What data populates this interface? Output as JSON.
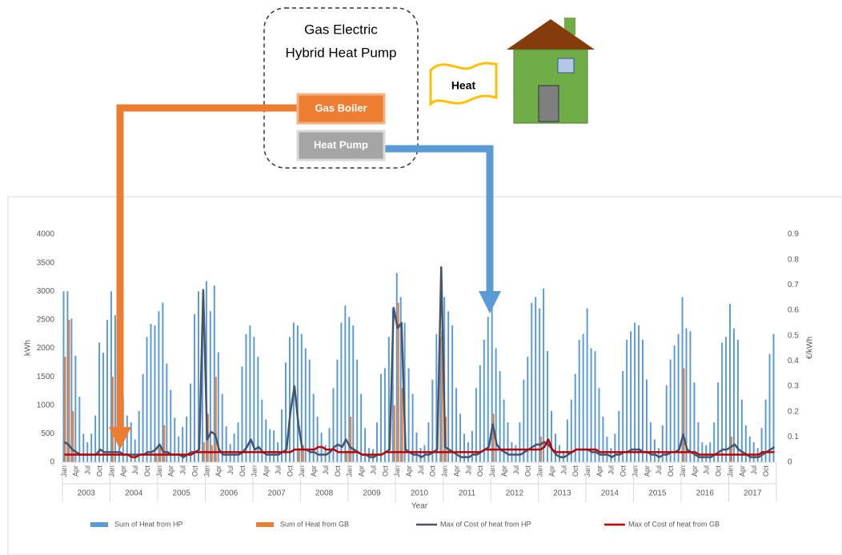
{
  "diagram": {
    "system_title_1": "Gas Electric",
    "system_title_2": "Hybrid Heat Pump",
    "gas_boiler": "Gas Boiler",
    "heat_pump": "Heat Pump",
    "heat": "Heat"
  },
  "chart_data": {
    "type": "bar",
    "y_label": "kWh",
    "y2_label": "€/kWh",
    "x_label": "Year",
    "years": [
      "2003",
      "2004",
      "2005",
      "2006",
      "2007",
      "2008",
      "2009",
      "2010",
      "2011",
      "2012",
      "2013",
      "2014",
      "2015",
      "2016",
      "2017"
    ],
    "categories": [
      "Jan",
      null,
      null,
      "Apr",
      null,
      null,
      "Jul",
      null,
      null,
      "Oct",
      null,
      null,
      "Jan",
      null,
      null,
      "Apr",
      null,
      null,
      "Jul",
      null,
      null,
      "Oct",
      null,
      null,
      "Jan",
      null,
      null,
      "Apr",
      null,
      null,
      "Jul",
      null,
      null,
      "Oct",
      null,
      null,
      "Jan",
      null,
      null,
      "Apr",
      null,
      null,
      "Jul",
      null,
      null,
      "Oct",
      null,
      null,
      "Jan",
      null,
      null,
      "Apr",
      null,
      null,
      "Jul",
      null,
      null,
      "Oct",
      null,
      null,
      "Jan",
      null,
      null,
      "Apr",
      null,
      null,
      "Jul",
      null,
      null,
      "Oct",
      null,
      null,
      "Jan",
      null,
      null,
      "Apr",
      null,
      null,
      "Jul",
      null,
      null,
      "Oct",
      null,
      null,
      "Jan",
      null,
      null,
      "Apr",
      null,
      null,
      "Jul",
      null,
      null,
      "Oct",
      null,
      null,
      "Jan",
      null,
      null,
      "Apr",
      null,
      null,
      "Jul",
      null,
      null,
      "Oct",
      null,
      null,
      "Jan",
      null,
      null,
      "Apr",
      null,
      null,
      "Jul",
      null,
      null,
      "Oct",
      null,
      null,
      "Jan",
      null,
      null,
      "Apr",
      null,
      null,
      "Jul",
      null,
      null,
      "Oct",
      null,
      null,
      "Jan",
      null,
      null,
      "Apr",
      null,
      null,
      "Jul",
      null,
      null,
      "Oct",
      null,
      null,
      "Jan",
      null,
      null,
      "Apr",
      null,
      null,
      "Jul",
      null,
      null,
      "Oct",
      null,
      null,
      "Jan",
      null,
      null,
      "Apr",
      null,
      null,
      "Jul",
      null,
      null,
      "Oct",
      null,
      null,
      "Jan",
      null,
      null,
      "Apr",
      null,
      null,
      "Jul",
      null,
      null,
      "Oct",
      null,
      null
    ],
    "ylim": [
      0,
      4000
    ],
    "yticks": [
      0,
      500,
      1000,
      1500,
      2000,
      2500,
      3000,
      3500,
      4000
    ],
    "y2lim": [
      0,
      0.9
    ],
    "y2ticks": [
      0,
      0.1,
      0.2,
      0.3,
      0.4,
      0.5,
      0.6,
      0.7,
      0.8,
      0.9
    ],
    "grid": false,
    "series": [
      {
        "name": "Sum of Heat from HP",
        "type": "bar",
        "color": "#5b9bd5",
        "values": [
          3000,
          3000,
          2520,
          1870,
          1150,
          500,
          350,
          500,
          820,
          2100,
          1920,
          2500,
          3000,
          2580,
          1350,
          1150,
          820,
          700,
          400,
          900,
          1550,
          2200,
          2430,
          2400,
          2650,
          2800,
          1730,
          1270,
          780,
          450,
          620,
          800,
          1380,
          2600,
          3000,
          2600,
          3180,
          2650,
          3100,
          1930,
          1200,
          630,
          320,
          500,
          700,
          1680,
          2250,
          2400,
          2200,
          1850,
          1100,
          750,
          580,
          560,
          350,
          930,
          1750,
          2200,
          2450,
          2400,
          2250,
          2000,
          1800,
          1200,
          800,
          520,
          300,
          600,
          1300,
          1800,
          2450,
          2750,
          2550,
          2400,
          1800,
          1200,
          600,
          250,
          230,
          700,
          1550,
          1650,
          2200,
          2700,
          3320,
          2900,
          2450,
          1650,
          1200,
          520,
          250,
          300,
          700,
          1450,
          2250,
          2200,
          2900,
          2650,
          2400,
          1300,
          850,
          500,
          350,
          550,
          1300,
          1700,
          2150,
          2550,
          2750,
          2000,
          1600,
          1100,
          700,
          350,
          300,
          700,
          1450,
          1850,
          2800,
          2900,
          2700,
          3050,
          1950,
          900,
          500,
          300,
          200,
          750,
          1100,
          1550,
          2150,
          2250,
          2700,
          2000,
          1950,
          1300,
          800,
          450,
          250,
          500,
          900,
          1600,
          2150,
          2300,
          2450,
          2400,
          2150,
          1450,
          700,
          400,
          250,
          650,
          1350,
          1800,
          2050,
          2250,
          2900,
          2350,
          2300,
          1400,
          700,
          350,
          300,
          350,
          700,
          1400,
          2100,
          2200,
          2780,
          2350,
          2150,
          1100,
          650,
          450,
          350,
          250,
          600,
          1100,
          1900,
          2250
        ]
      },
      {
        "name": "Sum of Heat from GB",
        "type": "bar",
        "color": "#ed7d31",
        "values": [
          1850,
          2500,
          900,
          0,
          0,
          0,
          0,
          0,
          0,
          0,
          0,
          0,
          1500,
          0,
          0,
          0,
          0,
          0,
          0,
          0,
          0,
          0,
          0,
          150,
          250,
          650,
          0,
          0,
          0,
          0,
          0,
          0,
          0,
          0,
          0,
          350,
          850,
          300,
          1500,
          0,
          0,
          0,
          0,
          0,
          0,
          0,
          0,
          0,
          0,
          0,
          0,
          0,
          0,
          0,
          0,
          0,
          0,
          0,
          0,
          250,
          300,
          0,
          0,
          0,
          0,
          0,
          0,
          0,
          0,
          0,
          0,
          200,
          800,
          0,
          0,
          0,
          0,
          0,
          0,
          0,
          0,
          0,
          0,
          1000,
          2800,
          1300,
          0,
          0,
          0,
          0,
          0,
          0,
          0,
          0,
          0,
          2300,
          800,
          0,
          0,
          0,
          0,
          0,
          0,
          0,
          0,
          0,
          0,
          0,
          850,
          0,
          0,
          0,
          0,
          0,
          0,
          0,
          0,
          0,
          0,
          0,
          450,
          0,
          0,
          0,
          0,
          0,
          0,
          0,
          0,
          0,
          0,
          0,
          0,
          0,
          0,
          0,
          0,
          0,
          0,
          0,
          0,
          0,
          0,
          0,
          0,
          0,
          0,
          0,
          0,
          0,
          0,
          0,
          0,
          0,
          0,
          0,
          1650,
          0,
          0,
          0,
          0,
          0,
          0,
          0,
          0,
          0,
          0,
          0,
          450,
          0,
          0,
          0,
          0,
          0,
          0,
          0,
          0,
          0,
          0,
          0
        ]
      },
      {
        "name": "Max of Cost of heat from HP",
        "type": "line",
        "axis": "y2",
        "color": "#44546a",
        "values": [
          0.08,
          0.07,
          0.05,
          0.04,
          0.03,
          0.03,
          0.03,
          0.03,
          0.03,
          0.05,
          0.04,
          0.04,
          0.04,
          0.04,
          0.04,
          0.03,
          0.03,
          0.03,
          0.03,
          0.03,
          0.03,
          0.04,
          0.04,
          0.05,
          0.07,
          0.04,
          0.04,
          0.03,
          0.03,
          0.03,
          0.02,
          0.03,
          0.04,
          0.04,
          0.05,
          0.68,
          0.09,
          0.12,
          0.11,
          0.05,
          0.03,
          0.03,
          0.03,
          0.03,
          0.03,
          0.04,
          0.06,
          0.09,
          0.05,
          0.06,
          0.04,
          0.03,
          0.03,
          0.03,
          0.03,
          0.04,
          0.05,
          0.2,
          0.3,
          0.15,
          0.05,
          0.05,
          0.04,
          0.04,
          0.03,
          0.03,
          0.03,
          0.04,
          0.06,
          0.07,
          0.06,
          0.09,
          0.06,
          0.05,
          0.04,
          0.03,
          0.03,
          0.02,
          0.02,
          0.03,
          0.03,
          0.04,
          0.05,
          0.61,
          0.53,
          0.55,
          0.05,
          0.04,
          0.03,
          0.03,
          0.02,
          0.03,
          0.03,
          0.04,
          0.05,
          0.77,
          0.06,
          0.05,
          0.04,
          0.03,
          0.02,
          0.02,
          0.02,
          0.03,
          0.03,
          0.04,
          0.05,
          0.06,
          0.15,
          0.07,
          0.05,
          0.04,
          0.03,
          0.03,
          0.03,
          0.03,
          0.04,
          0.05,
          0.06,
          0.07,
          0.07,
          0.08,
          0.07,
          0.05,
          0.03,
          0.02,
          0.02,
          0.03,
          0.04,
          0.05,
          0.05,
          0.05,
          0.05,
          0.04,
          0.04,
          0.03,
          0.03,
          0.03,
          0.02,
          0.03,
          0.03,
          0.04,
          0.04,
          0.05,
          0.05,
          0.05,
          0.04,
          0.04,
          0.03,
          0.03,
          0.02,
          0.03,
          0.03,
          0.04,
          0.04,
          0.05,
          0.11,
          0.05,
          0.04,
          0.03,
          0.02,
          0.02,
          0.02,
          0.02,
          0.03,
          0.04,
          0.05,
          0.05,
          0.06,
          0.07,
          0.05,
          0.04,
          0.03,
          0.02,
          0.02,
          0.02,
          0.03,
          0.04,
          0.05,
          0.06
        ]
      },
      {
        "name": "Max of Cost of heat from GB",
        "type": "line",
        "axis": "y2",
        "color": "#c00000",
        "values": [
          0.03,
          0.03,
          0.03,
          0.03,
          0.03,
          0.03,
          0.03,
          0.03,
          0.03,
          0.03,
          0.03,
          0.03,
          0.03,
          0.03,
          0.03,
          0.03,
          0.03,
          0.02,
          0.02,
          0.03,
          0.03,
          0.03,
          0.03,
          0.03,
          0.03,
          0.03,
          0.03,
          0.03,
          0.03,
          0.03,
          0.03,
          0.03,
          0.03,
          0.04,
          0.04,
          0.04,
          0.04,
          0.04,
          0.04,
          0.04,
          0.04,
          0.04,
          0.04,
          0.04,
          0.04,
          0.04,
          0.04,
          0.04,
          0.04,
          0.04,
          0.04,
          0.04,
          0.04,
          0.04,
          0.04,
          0.04,
          0.04,
          0.04,
          0.05,
          0.05,
          0.05,
          0.05,
          0.05,
          0.05,
          0.06,
          0.06,
          0.05,
          0.05,
          0.05,
          0.04,
          0.04,
          0.04,
          0.04,
          0.04,
          0.04,
          0.03,
          0.03,
          0.03,
          0.03,
          0.03,
          0.03,
          0.04,
          0.04,
          0.04,
          0.04,
          0.04,
          0.04,
          0.04,
          0.04,
          0.04,
          0.04,
          0.04,
          0.04,
          0.04,
          0.04,
          0.04,
          0.04,
          0.04,
          0.04,
          0.04,
          0.04,
          0.04,
          0.04,
          0.04,
          0.04,
          0.04,
          0.05,
          0.05,
          0.05,
          0.05,
          0.05,
          0.05,
          0.05,
          0.05,
          0.05,
          0.05,
          0.05,
          0.05,
          0.05,
          0.05,
          0.05,
          0.06,
          0.09,
          0.05,
          0.04,
          0.04,
          0.04,
          0.04,
          0.04,
          0.05,
          0.05,
          0.05,
          0.05,
          0.05,
          0.05,
          0.04,
          0.04,
          0.04,
          0.04,
          0.04,
          0.04,
          0.04,
          0.04,
          0.04,
          0.04,
          0.04,
          0.04,
          0.04,
          0.04,
          0.04,
          0.04,
          0.04,
          0.04,
          0.04,
          0.04,
          0.04,
          0.04,
          0.04,
          0.04,
          0.04,
          0.03,
          0.03,
          0.03,
          0.03,
          0.03,
          0.03,
          0.03,
          0.03,
          0.03,
          0.03,
          0.03,
          0.03,
          0.03,
          0.03,
          0.03,
          0.03,
          0.04,
          0.04,
          0.04,
          0.04
        ]
      }
    ]
  }
}
